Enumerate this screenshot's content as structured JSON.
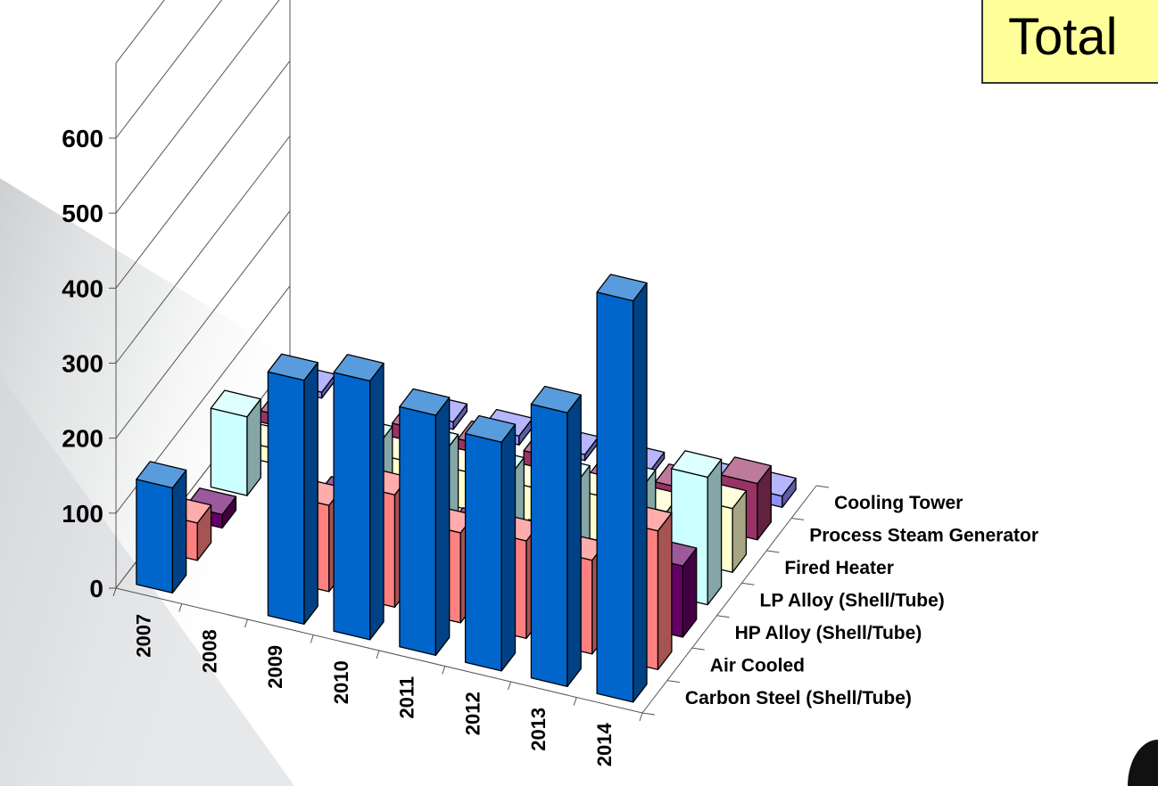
{
  "badge": {
    "label": "Total",
    "color": "#ffff99"
  },
  "chart_data": {
    "type": "bar",
    "projection": "3d-grouped-depth",
    "title": "",
    "xlabel": "",
    "ylabel": "",
    "categories": [
      "2007",
      "2008",
      "2009",
      "2010",
      "2011",
      "2012",
      "2013",
      "2014"
    ],
    "ylim": [
      0,
      700
    ],
    "yticks": [
      0,
      100,
      200,
      300,
      400,
      500,
      600
    ],
    "grid": true,
    "legend": "none",
    "series": [
      {
        "name": "Cooling Tower",
        "color": "#8f8fff",
        "values": [
          8,
          null,
          10,
          12,
          8,
          8,
          12,
          15
        ]
      },
      {
        "name": "Process Steam Generator",
        "color": "#993366",
        "values": [
          15,
          null,
          40,
          40,
          45,
          35,
          45,
          75
        ]
      },
      {
        "name": "Fired Heater",
        "color": "#ffffcc",
        "values": [
          20,
          null,
          45,
          50,
          50,
          60,
          60,
          85
        ]
      },
      {
        "name": "LP Alloy (Shell/Tube)",
        "color": "#ccffff",
        "values": [
          105,
          null,
          110,
          120,
          110,
          120,
          135,
          170
        ]
      },
      {
        "name": "HP Alloy (Shell/Tube)",
        "color": "#660066",
        "values": [
          18,
          null,
          75,
          80,
          75,
          80,
          65,
          95
        ]
      },
      {
        "name": "Air Cooled",
        "color": "#ff8080",
        "values": [
          50,
          null,
          115,
          150,
          120,
          130,
          125,
          185
        ]
      },
      {
        "name": "Carbon Steel (Shell/Tube)",
        "color": "#0066cc",
        "values": [
          140,
          null,
          325,
          345,
          320,
          305,
          365,
          535
        ]
      }
    ]
  }
}
